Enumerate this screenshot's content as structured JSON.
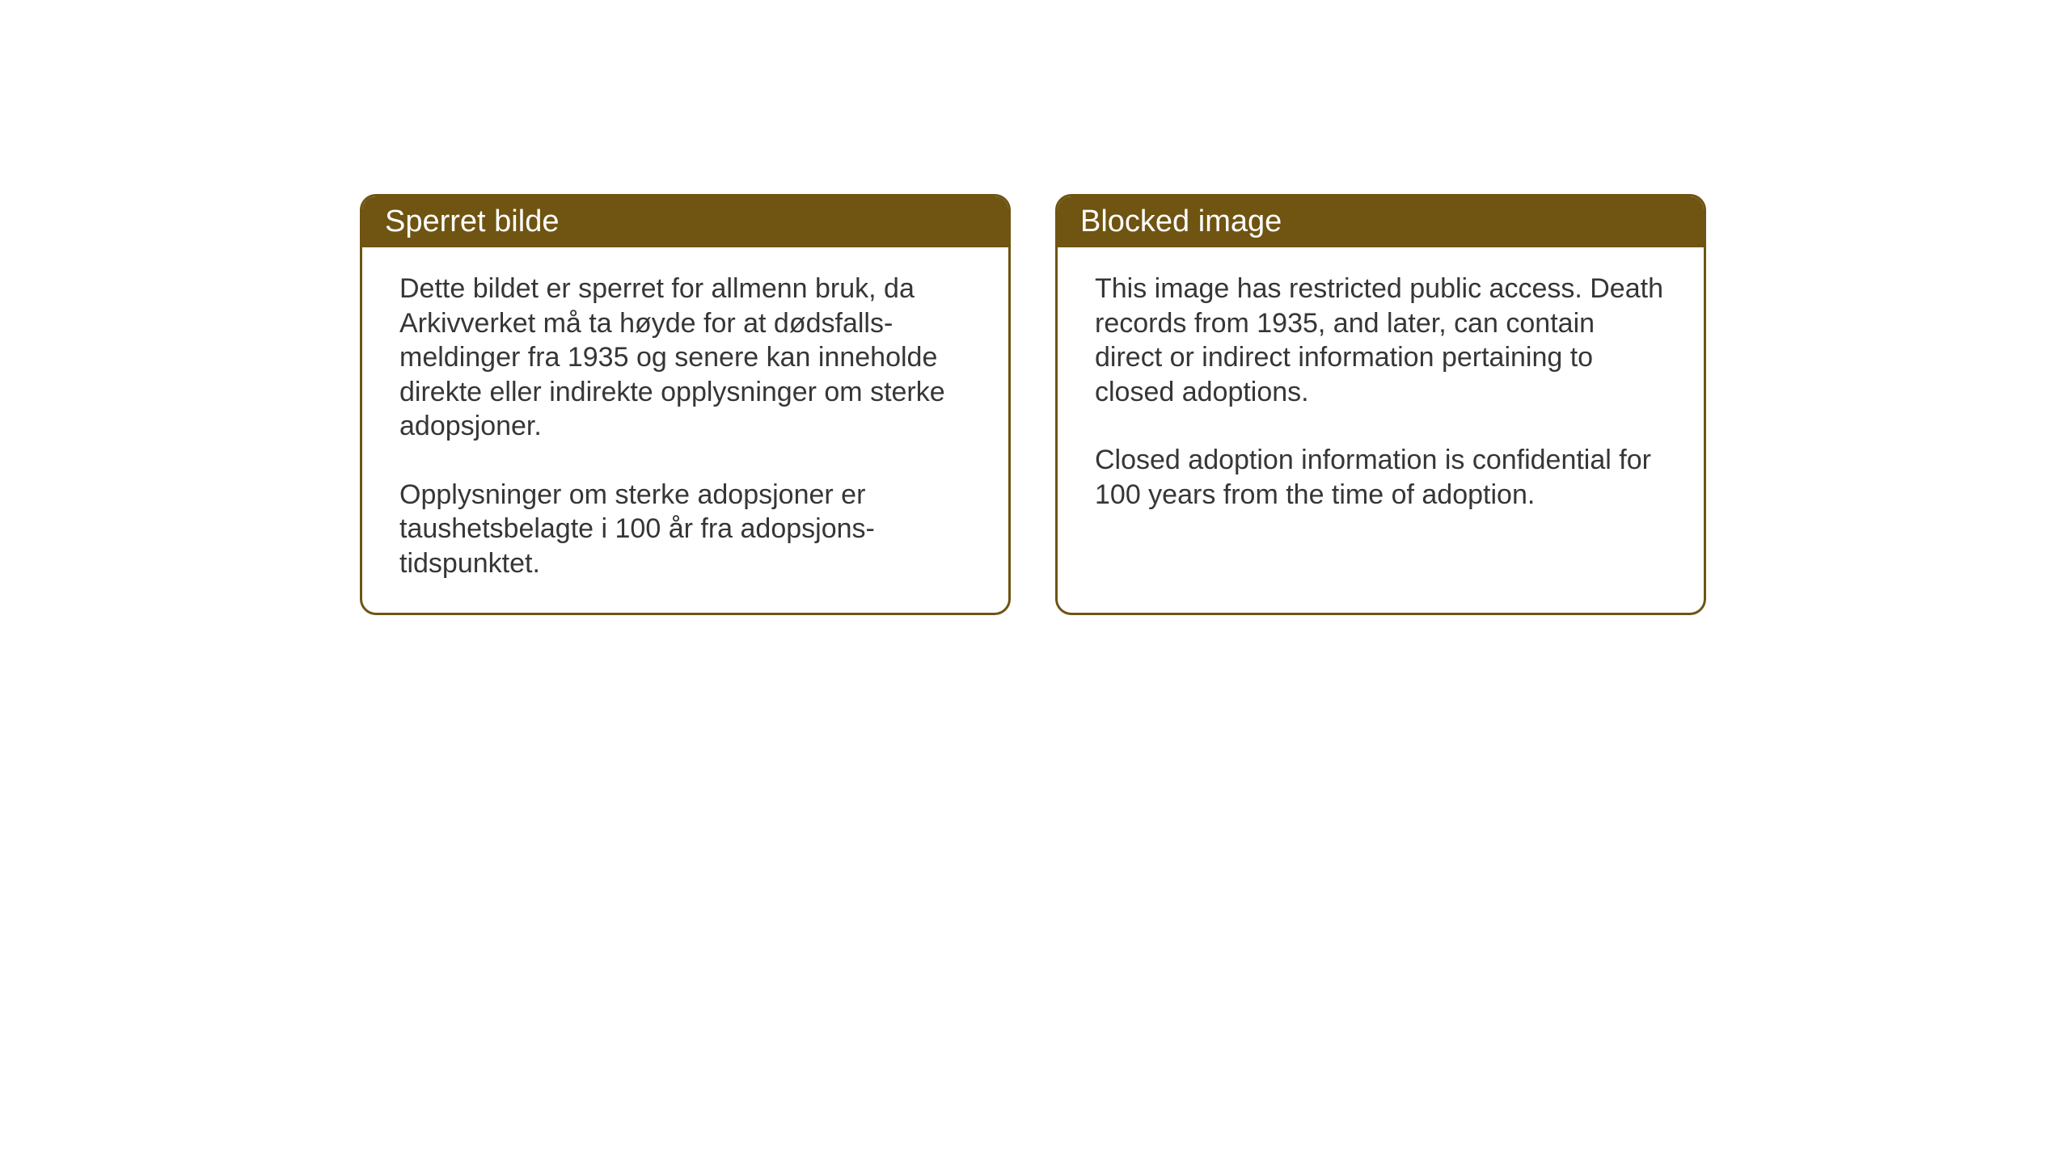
{
  "notices": {
    "norwegian": {
      "title": "Sperret bilde",
      "paragraph1": "Dette bildet er sperret for allmenn bruk, da Arkivverket må ta høyde for at dødsfalls-meldinger fra 1935 og senere kan inneholde direkte eller indirekte opplysninger om sterke adopsjoner.",
      "paragraph2": "Opplysninger om sterke adopsjoner er taushetsbelagte i 100 år fra adopsjons-tidspunktet."
    },
    "english": {
      "title": "Blocked image",
      "paragraph1": "This image has restricted public access. Death records from 1935, and later, can contain direct or indirect information pertaining to closed adoptions.",
      "paragraph2": "Closed adoption information is confidential for 100 years from the time of adoption."
    }
  },
  "styling": {
    "header_background": "#6f5412",
    "header_text_color": "#ffffff",
    "border_color": "#6f5412",
    "body_text_color": "#363636",
    "background_color": "#ffffff",
    "header_fontsize": 38,
    "body_fontsize": 34,
    "border_radius": 20,
    "border_width": 3
  }
}
